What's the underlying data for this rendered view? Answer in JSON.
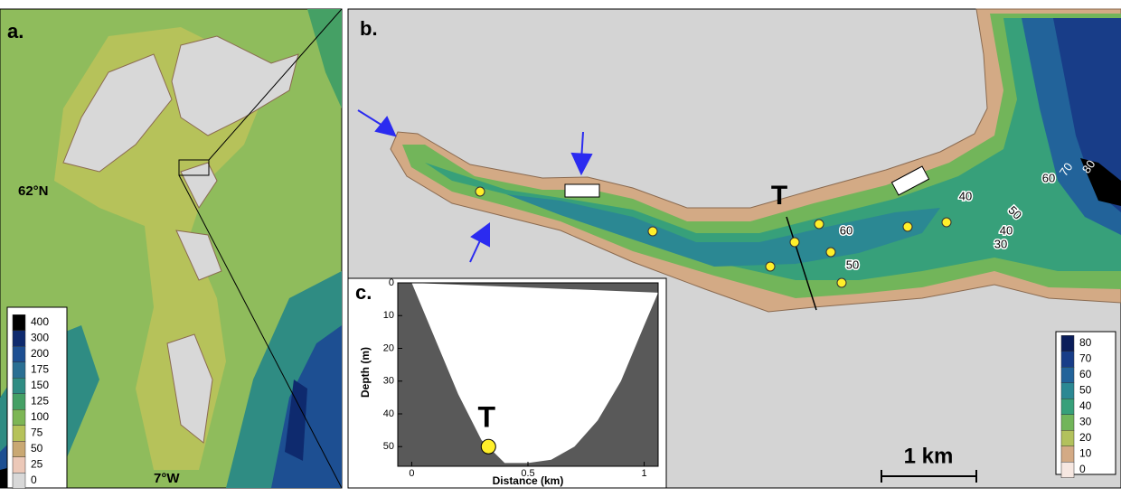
{
  "panels": {
    "a": {
      "label": "a.",
      "lat_label": "62°N",
      "lon_label": "7°W",
      "legend": [
        {
          "label": 400,
          "color": "#000000"
        },
        {
          "label": 300,
          "color": "#0e2a6e"
        },
        {
          "label": 200,
          "color": "#1d4f92"
        },
        {
          "label": 175,
          "color": "#2a6f93"
        },
        {
          "label": 150,
          "color": "#2f8c83"
        },
        {
          "label": 125,
          "color": "#45a065"
        },
        {
          "label": 100,
          "color": "#7db655"
        },
        {
          "label": 75,
          "color": "#b6c25a"
        },
        {
          "label": 50,
          "color": "#c9a873"
        },
        {
          "label": 25,
          "color": "#ecc8b8"
        },
        {
          "label": 0,
          "color": "#d8d8d8"
        }
      ]
    },
    "b": {
      "label": "b.",
      "transect_label": "T",
      "scale_label": "1 km",
      "contour_labels": [
        80,
        70,
        60,
        50,
        40,
        30,
        40,
        60,
        50
      ],
      "legend": [
        {
          "label": 80,
          "color": "#0a1d5a"
        },
        {
          "label": 70,
          "color": "#183d88"
        },
        {
          "label": 60,
          "color": "#22639a"
        },
        {
          "label": 50,
          "color": "#2b8893"
        },
        {
          "label": 40,
          "color": "#37a07a"
        },
        {
          "label": 30,
          "color": "#72b55a"
        },
        {
          "label": 20,
          "color": "#b2c15c"
        },
        {
          "label": 10,
          "color": "#d3aa85"
        },
        {
          "label": 0,
          "color": "#f6e7e1"
        }
      ]
    },
    "c": {
      "label": "c.",
      "x_label": "Distance (km)",
      "y_label": "Depth (m)",
      "point_label": "T",
      "xlim": [
        -0.06,
        1.06
      ],
      "ylim": [
        0,
        56
      ],
      "xticks": [
        0,
        0.5,
        1
      ],
      "yticks": [
        0,
        10,
        20,
        30,
        40,
        50
      ],
      "profile": {
        "x": [
          0.0,
          0.1,
          0.2,
          0.3,
          0.4,
          0.5,
          0.6,
          0.7,
          0.8,
          0.9,
          1.0,
          1.06
        ],
        "y": [
          0,
          17,
          34,
          48,
          55,
          55,
          54,
          50,
          42,
          30,
          13,
          3
        ]
      },
      "point": {
        "x": 0.33,
        "y": 50
      }
    }
  }
}
